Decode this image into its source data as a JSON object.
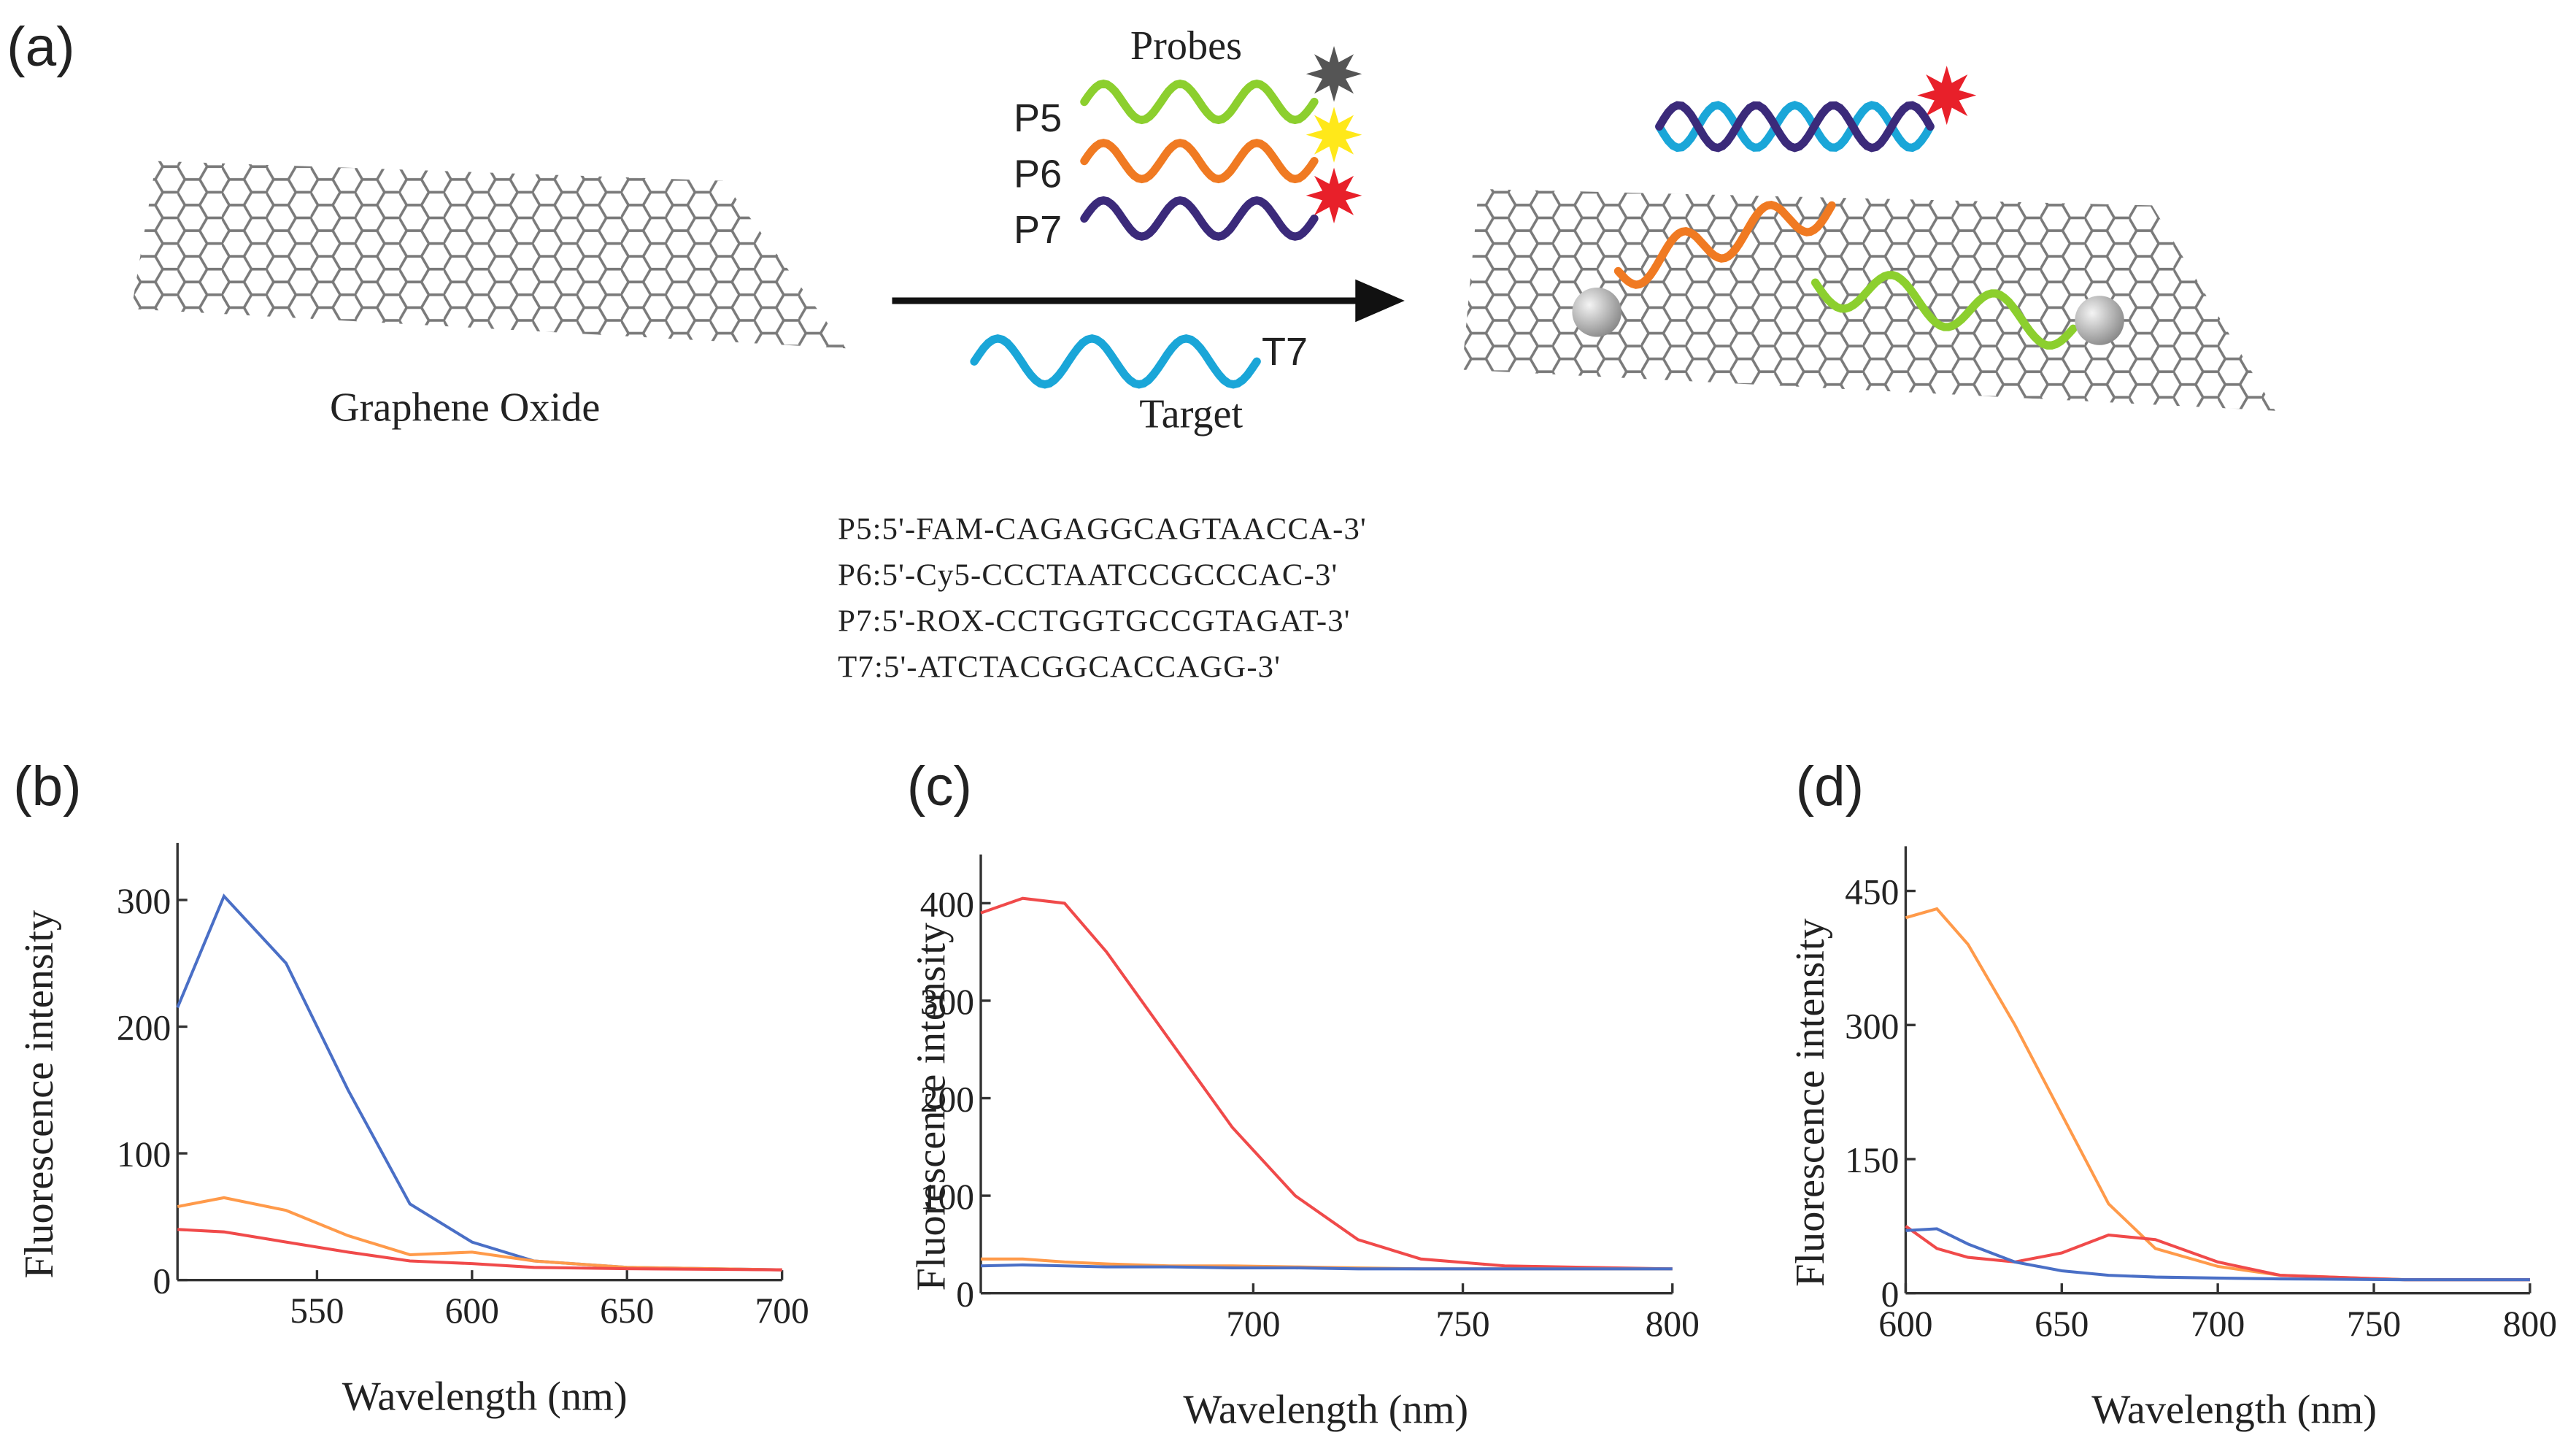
{
  "diagram": {
    "label": "(a)",
    "probes": "Probes",
    "p5": "P5",
    "p6": "P6",
    "p7": "P7",
    "t7": "T7",
    "target": "Target",
    "graphene": "Graphene Oxide",
    "sequences": [
      "P5:5'-FAM-CAGAGGCAGTAACCA-3'",
      "P6:5'-Cy5-CCCTAATCCGCCCAC-3'",
      "P7:5'-ROX-CCTGGTGCCGTAGAT-3'",
      "T7:5'-ATCTACGGCACCAGG-3'"
    ]
  },
  "chart_data": [
    {
      "type": "line",
      "label": "(b)",
      "x_label": "Wavelength (nm)",
      "y_label": "Fluorescence intensity",
      "x": [
        505,
        520,
        540,
        560,
        580,
        600,
        620,
        650,
        700
      ],
      "series": [
        {
          "color": "#4a6fc6",
          "values": [
            215,
            303,
            250,
            150,
            60,
            30,
            15,
            10,
            8
          ]
        },
        {
          "color": "#ff9a4a",
          "values": [
            58,
            65,
            55,
            35,
            20,
            22,
            15,
            10,
            8
          ]
        },
        {
          "color": "#f04a4a",
          "values": [
            40,
            38,
            30,
            22,
            15,
            13,
            10,
            9,
            8
          ]
        }
      ],
      "xlim": [
        505,
        700
      ],
      "xticks": [
        550,
        600,
        650,
        700
      ],
      "ylim": [
        0,
        345
      ],
      "yticks": [
        0,
        100,
        200,
        300
      ]
    },
    {
      "type": "line",
      "label": "(c)",
      "x_label": "Wavelength (nm)",
      "y_label": "Fluorescence intensity",
      "x": [
        635,
        645,
        655,
        665,
        680,
        695,
        710,
        725,
        740,
        760,
        800
      ],
      "series": [
        {
          "color": "#f04a4a",
          "values": [
            390,
            405,
            400,
            350,
            260,
            170,
            100,
            55,
            35,
            28,
            25
          ]
        },
        {
          "color": "#ff9a4a",
          "values": [
            35,
            35,
            32,
            30,
            28,
            28,
            27,
            26,
            25,
            25,
            25
          ]
        },
        {
          "color": "#4a6fc6",
          "values": [
            28,
            29,
            28,
            27,
            27,
            26,
            26,
            25,
            25,
            25,
            25
          ]
        }
      ],
      "xlim": [
        635,
        800
      ],
      "xticks": [
        700,
        750,
        800
      ],
      "ylim": [
        0,
        450
      ],
      "yticks": [
        0,
        100,
        200,
        300,
        400
      ]
    },
    {
      "type": "line",
      "label": "(d)",
      "x_label": "Wavelength (nm)",
      "y_label": "Fluorescence intensity",
      "x": [
        600,
        610,
        620,
        635,
        650,
        665,
        680,
        700,
        720,
        760,
        800
      ],
      "series": [
        {
          "color": "#ff9a4a",
          "values": [
            420,
            430,
            390,
            300,
            200,
            100,
            50,
            30,
            20,
            15,
            15
          ]
        },
        {
          "color": "#f04a4a",
          "values": [
            75,
            50,
            40,
            35,
            45,
            65,
            60,
            35,
            20,
            15,
            15
          ]
        },
        {
          "color": "#4a6fc6",
          "values": [
            70,
            72,
            55,
            35,
            25,
            20,
            18,
            17,
            16,
            15,
            15
          ]
        }
      ],
      "xlim": [
        600,
        800
      ],
      "xticks": [
        600,
        650,
        700,
        750,
        800
      ],
      "ylim": [
        0,
        500
      ],
      "yticks": [
        0,
        150,
        300,
        450
      ]
    }
  ]
}
